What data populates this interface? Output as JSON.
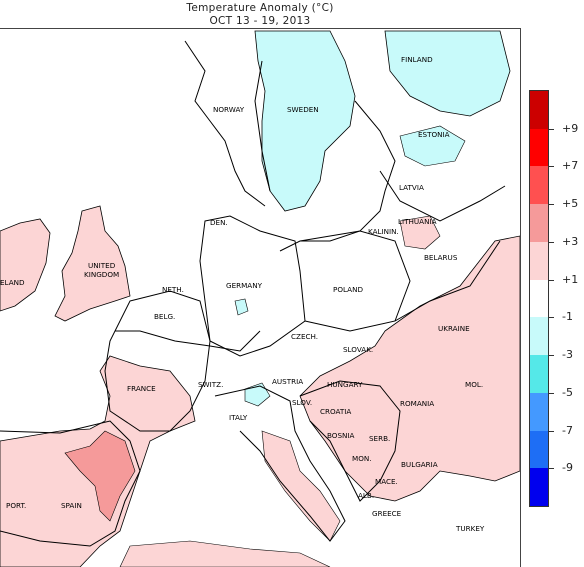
{
  "title": {
    "line1": "Temperature Anomaly (°C)",
    "line2": "OCT 13 - 19, 2013"
  },
  "labels": {
    "finland": "FINLAND",
    "norway": "NORWAY",
    "sweden": "SWEDEN",
    "estonia": "ESTONIA",
    "latvia": "LATVIA",
    "lithuania": "LITHUANIA",
    "kalinin": "KALININ.",
    "belarus": "BELARUS",
    "den": "DEN.",
    "ireland": "ELAND",
    "uk": "UNITED\nKINGDOM",
    "uk1": "UNITED",
    "uk2": "KINGDOM",
    "neth": "NETH.",
    "belg": "BELG.",
    "germany": "GERMANY",
    "poland": "POLAND",
    "czech": "CZECH.",
    "slovak": "SLOVAK.",
    "ukraine": "UKRAINE",
    "france": "FRANCE",
    "switz": "SWITZ.",
    "austria": "AUSTRIA",
    "hungary": "HUNGARY",
    "mol": "MOL.",
    "slov": "SLOV.",
    "croatia": "CROATIA",
    "romania": "ROMANIA",
    "italy": "ITALY",
    "bosnia": "BOSNIA",
    "serb": "SERB.",
    "mon": "MON.",
    "bulgaria": "BULGARIA",
    "mace": "MACE.",
    "alb": "ALB.",
    "greece": "GREECE",
    "turkey": "TURKEY",
    "port": "PORT.",
    "spain": "SPAIN"
  },
  "legend": {
    "ticks": [
      "+9",
      "+7",
      "+5",
      "+3",
      "+1",
      "-1",
      "-3",
      "-5",
      "-7",
      "-9"
    ],
    "colors": [
      "#cc0000",
      "#ff0000",
      "#ff5050",
      "#f59a9a",
      "#fcd5d5",
      "#ffffff",
      "#c8fafa",
      "#55e8e8",
      "#4499ff",
      "#1e6ef5",
      "#0000ee"
    ]
  },
  "colors": {
    "warm_light": "#fcd5d5",
    "warm_mid": "#f59a9a",
    "cool_light": "#c8fafa",
    "border": "#000000"
  }
}
